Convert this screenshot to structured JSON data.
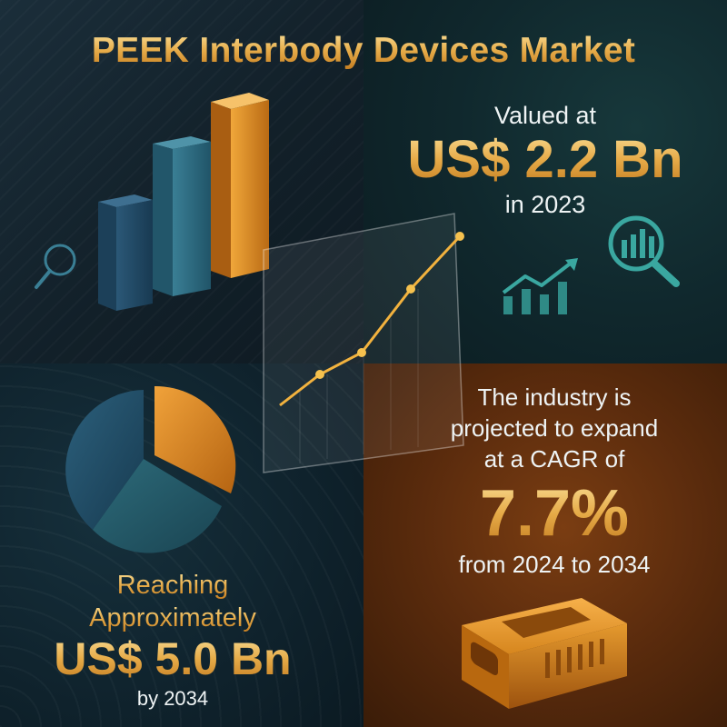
{
  "title": "PEEK Interbody Devices Market",
  "valued": {
    "label": "Valued at",
    "value": "US$ 2.2 Bn",
    "year": "in 2023"
  },
  "cagr": {
    "line1": "The industry is",
    "line2": "projected to expand",
    "line3": "at a CAGR of",
    "value": "7.7%",
    "period": "from 2024 to 2034"
  },
  "reaching": {
    "line1": "Reaching",
    "line2": "Approximately",
    "value": "US$ 5.0 Bn",
    "year": "by 2034"
  },
  "colors": {
    "gold": "#e6ab48",
    "orange": "#d9861f",
    "teal": "#2f6773",
    "navy": "#1e4a66",
    "background": "#0f1c24"
  },
  "icons": [
    "magnifier-icon",
    "bar-chart-magnifier-icon",
    "rising-trend-icon",
    "peek-cage-device-icon"
  ]
}
